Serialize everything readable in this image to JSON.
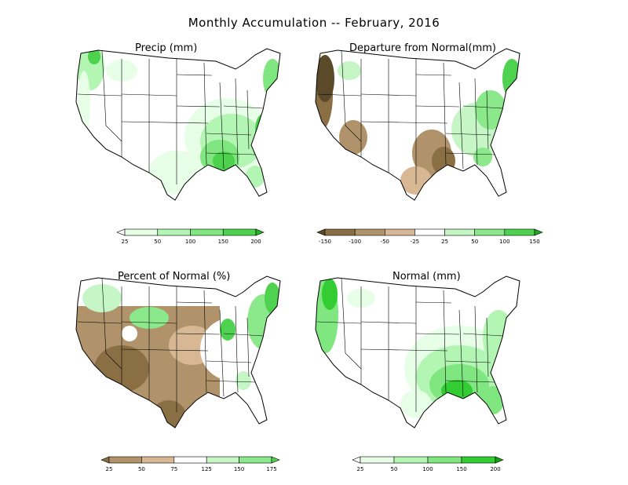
{
  "title": "Monthly Accumulation -- February, 2016",
  "panels": [
    {
      "title": "Precip (mm)",
      "colorbar": {
        "labels": [
          "25",
          "50",
          "100",
          "150",
          "200"
        ],
        "colors": [
          "#ffffff",
          "#e6ffe6",
          "#b3f5b3",
          "#80e680",
          "#4dd24d",
          "#22b422"
        ]
      }
    },
    {
      "title": "Departure from Normal(mm)",
      "colorbar": {
        "labels": [
          "-150",
          "-100",
          "-50",
          "-25",
          "25",
          "50",
          "100",
          "150"
        ],
        "colors": [
          "#5a4a2a",
          "#8a6f44",
          "#b0936a",
          "#d8b894",
          "#ffffff",
          "#c6f5c6",
          "#8be88b",
          "#4fd24f",
          "#1ea91e"
        ]
      }
    },
    {
      "title": "Percent of Normal (%)",
      "colorbar": {
        "labels": [
          "25",
          "50",
          "75",
          "125",
          "150",
          "175"
        ],
        "colors": [
          "#8a6f44",
          "#b0936a",
          "#d8b894",
          "#ffffff",
          "#c6f5c6",
          "#8be88b",
          "#4fd24f"
        ]
      }
    },
    {
      "title": "Normal (mm)",
      "colorbar": {
        "labels": [
          "25",
          "50",
          "100",
          "150",
          "200"
        ],
        "colors": [
          "#ffffff",
          "#e6ffe6",
          "#b3f5b3",
          "#80e680",
          "#33cc33",
          "#0fa60f"
        ]
      }
    }
  ]
}
